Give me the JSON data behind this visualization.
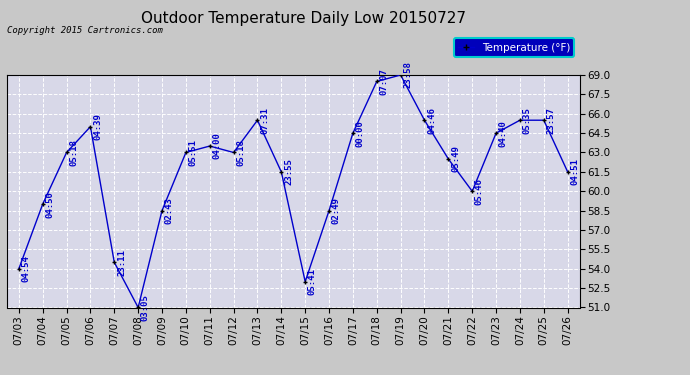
{
  "title": "Outdoor Temperature Daily Low 20150727",
  "copyright": "Copyright 2015 Cartronics.com",
  "legend_label": "Temperature (°F)",
  "dates": [
    "07/03",
    "07/04",
    "07/05",
    "07/06",
    "07/07",
    "07/08",
    "07/09",
    "07/10",
    "07/11",
    "07/12",
    "07/13",
    "07/14",
    "07/15",
    "07/16",
    "07/17",
    "07/18",
    "07/19",
    "07/20",
    "07/21",
    "07/22",
    "07/23",
    "07/24",
    "07/25",
    "07/26"
  ],
  "temps": [
    54.0,
    59.0,
    63.0,
    65.0,
    54.5,
    51.0,
    58.5,
    63.0,
    63.5,
    63.0,
    65.5,
    61.5,
    53.0,
    58.5,
    64.5,
    68.5,
    69.0,
    65.5,
    62.5,
    60.0,
    64.5,
    65.5,
    65.5,
    61.5
  ],
  "times": [
    "04:54",
    "04:50",
    "05:18",
    "04:39",
    "23:11",
    "03:05",
    "02:43",
    "05:51",
    "04:00",
    "05:18",
    "07:31",
    "23:55",
    "05:41",
    "02:49",
    "00:00",
    "07:07",
    "23:58",
    "04:46",
    "05:49",
    "05:46",
    "04:40",
    "05:35",
    "23:57",
    "04:51"
  ],
  "ylim": [
    51.0,
    69.0
  ],
  "yticks": [
    51.0,
    52.5,
    54.0,
    55.5,
    57.0,
    58.5,
    60.0,
    61.5,
    63.0,
    64.5,
    66.0,
    67.5,
    69.0
  ],
  "line_color": "#0000cc",
  "marker_color": "#000000",
  "bg_color": "#c8c8c8",
  "plot_bg_color": "#d8d8e8",
  "title_fontsize": 11,
  "label_fontsize": 7.5,
  "annotation_fontsize": 6.5,
  "legend_bg": "#0000bb",
  "legend_text_color": "#ffffff",
  "legend_border_color": "#00cccc"
}
